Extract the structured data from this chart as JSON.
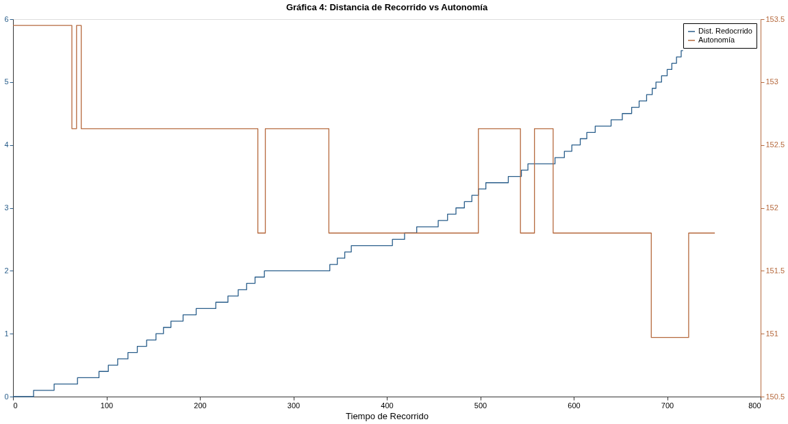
{
  "chart_data": {
    "type": "step",
    "title": "Gráfica 4: Distancia de Recorrido vs Autonomía",
    "xlabel": "Tiempo de Recorrido",
    "xlim": [
      0,
      800
    ],
    "xticks": [
      0,
      100,
      200,
      300,
      400,
      500,
      600,
      700,
      800
    ],
    "ylim": [
      0,
      6
    ],
    "yticks": [
      0,
      1,
      2,
      3,
      4,
      5,
      6
    ],
    "y2lim": [
      150.5,
      153.5
    ],
    "y2ticks": [
      150.5,
      151,
      151.5,
      152,
      152.5,
      153,
      153.5
    ],
    "legend": "top right",
    "grid": false,
    "line_style": "solid",
    "marker": "none",
    "series": [
      {
        "name": "Dist. Redocrrido",
        "color": "#285d8a",
        "axis": "y",
        "x": [
          0,
          22,
          44,
          69,
          92,
          102,
          112,
          123,
          133,
          143,
          153,
          161,
          169,
          182,
          196,
          217,
          230,
          241,
          250,
          259,
          269,
          339,
          347,
          355,
          362,
          406,
          419,
          432,
          455,
          465,
          474,
          483,
          491,
          498,
          506,
          530,
          544,
          551,
          580,
          590,
          598,
          607,
          614,
          623,
          640,
          652,
          662,
          670,
          678,
          684,
          688,
          694,
          700,
          705,
          710,
          715,
          717
        ],
        "values": [
          0,
          0.1,
          0.2,
          0.3,
          0.4,
          0.5,
          0.6,
          0.7,
          0.8,
          0.9,
          1.0,
          1.1,
          1.2,
          1.3,
          1.4,
          1.5,
          1.6,
          1.7,
          1.8,
          1.9,
          2.0,
          2.1,
          2.2,
          2.3,
          2.4,
          2.5,
          2.6,
          2.7,
          2.8,
          2.9,
          3.0,
          3.1,
          3.2,
          3.3,
          3.4,
          3.5,
          3.6,
          3.7,
          3.8,
          3.9,
          4.0,
          4.1,
          4.2,
          4.3,
          4.4,
          4.5,
          4.6,
          4.7,
          4.8,
          4.9,
          5.0,
          5.1,
          5.2,
          5.3,
          5.4,
          5.5,
          5.5
        ]
      },
      {
        "name": "Autonomía",
        "color": "#b5683c",
        "axis": "y2",
        "x": [
          0,
          63,
          68,
          73,
          262,
          270,
          338,
          498,
          543,
          558,
          578,
          683,
          723,
          751
        ],
        "values": [
          153.45,
          152.63,
          153.45,
          152.63,
          151.8,
          152.63,
          151.8,
          152.63,
          151.8,
          152.63,
          151.8,
          150.97,
          151.8,
          151.8
        ]
      }
    ]
  }
}
